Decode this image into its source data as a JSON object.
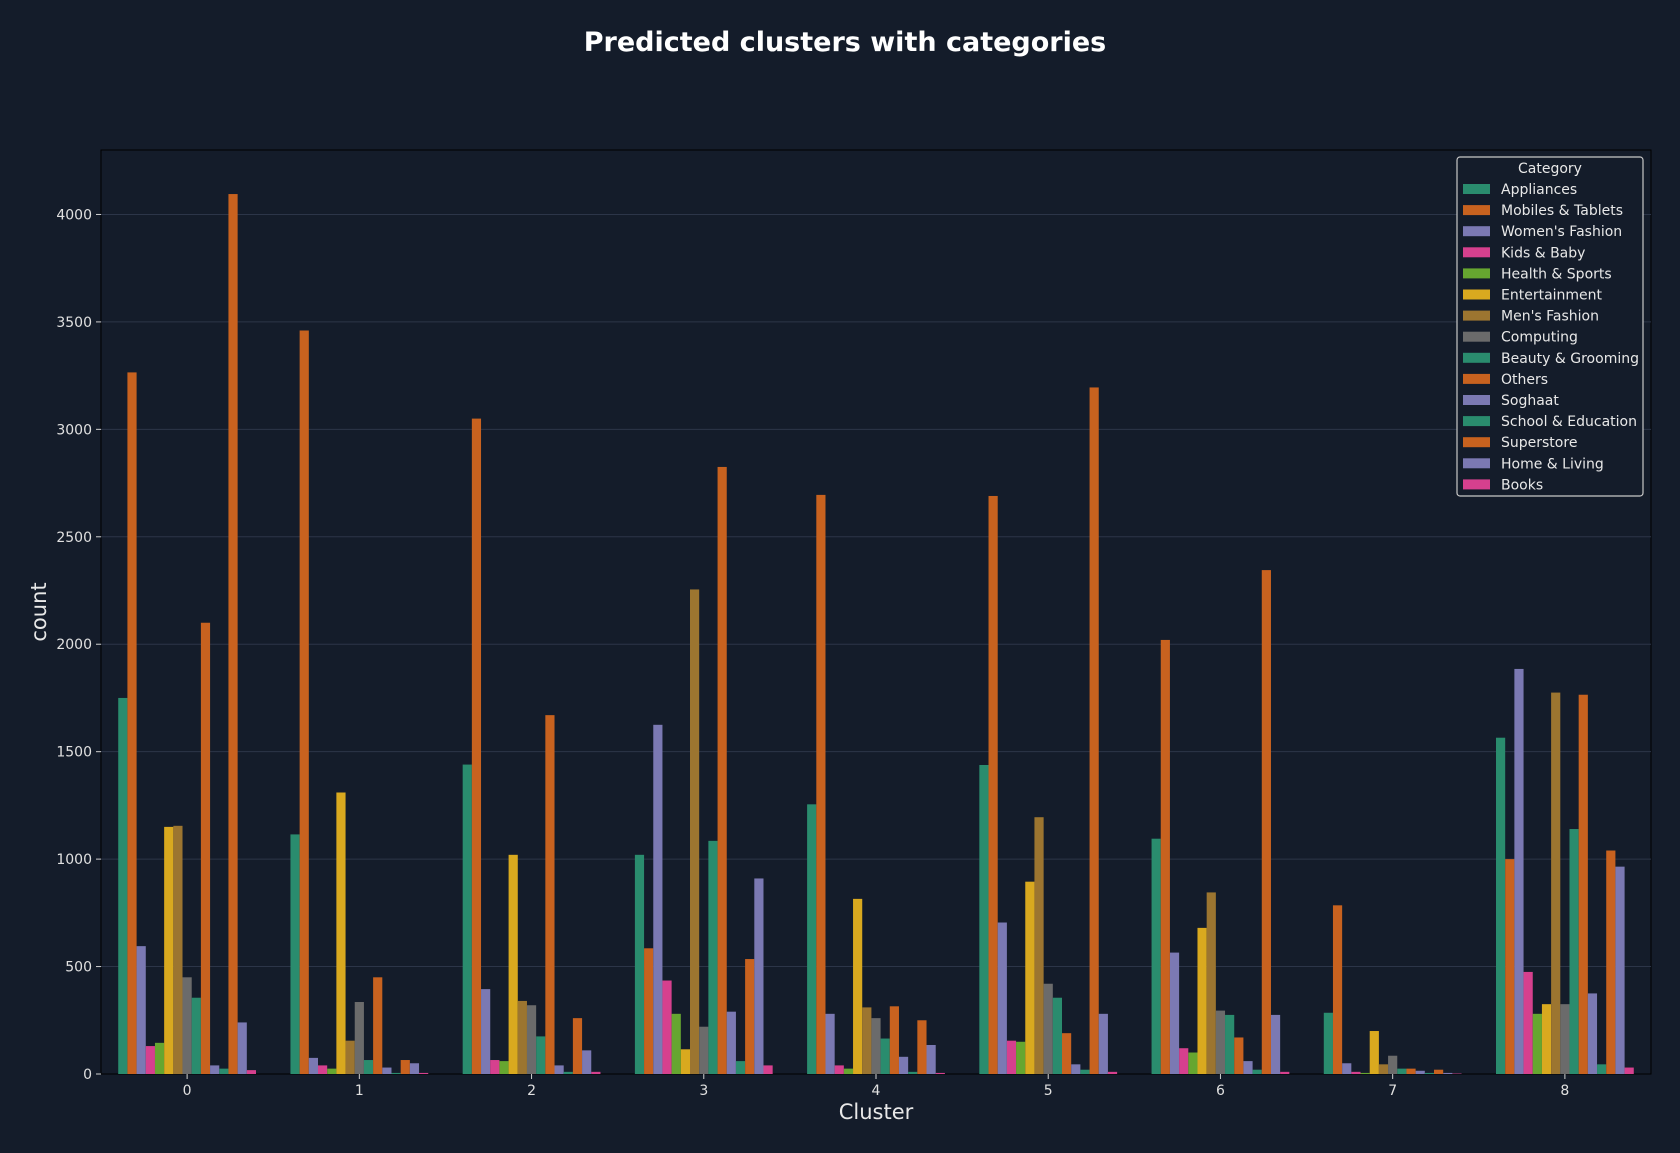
{
  "chart_data": {
    "type": "bar",
    "title": "Predicted clusters with categories",
    "xlabel": "Cluster",
    "ylabel": "count",
    "ylim": [
      0,
      4300
    ],
    "yticks": [
      0,
      500,
      1000,
      1500,
      2000,
      2500,
      3000,
      3500,
      4000
    ],
    "grid": true,
    "legend": {
      "title": "Category",
      "position": "top-right"
    },
    "categories": [
      "0",
      "1",
      "2",
      "3",
      "4",
      "5",
      "6",
      "7",
      "8"
    ],
    "series": [
      {
        "name": "Appliances",
        "color": "#2a8c6e",
        "values": [
          1750,
          1115,
          1440,
          1020,
          1255,
          1438,
          1095,
          285,
          1565
        ]
      },
      {
        "name": "Mobiles & Tablets",
        "color": "#c8621f",
        "values": [
          3265,
          3460,
          3050,
          585,
          2695,
          2690,
          2020,
          785,
          1000
        ]
      },
      {
        "name": "Women's Fashion",
        "color": "#7b79b3",
        "values": [
          595,
          75,
          395,
          1625,
          280,
          705,
          565,
          50,
          1885
        ]
      },
      {
        "name": "Kids & Baby",
        "color": "#d6408e",
        "values": [
          130,
          40,
          65,
          435,
          40,
          155,
          120,
          10,
          475
        ]
      },
      {
        "name": "Health & Sports",
        "color": "#66a630",
        "values": [
          145,
          25,
          60,
          280,
          25,
          150,
          100,
          5,
          280
        ]
      },
      {
        "name": "Entertainment",
        "color": "#d9a91f",
        "values": [
          1150,
          1310,
          1020,
          115,
          815,
          895,
          680,
          200,
          325
        ]
      },
      {
        "name": "Men's Fashion",
        "color": "#9c7530",
        "values": [
          1155,
          155,
          340,
          2255,
          310,
          1195,
          845,
          45,
          1775
        ]
      },
      {
        "name": "Computing",
        "color": "#6b6b6b",
        "values": [
          450,
          335,
          320,
          220,
          260,
          420,
          295,
          85,
          325
        ]
      },
      {
        "name": "Beauty & Grooming",
        "color": "#2a8c6e",
        "values": [
          355,
          65,
          175,
          1085,
          165,
          355,
          275,
          25,
          1140
        ]
      },
      {
        "name": "Others",
        "color": "#c8621f",
        "values": [
          2100,
          450,
          1670,
          2825,
          315,
          190,
          170,
          25,
          1765
        ]
      },
      {
        "name": "Soghaat",
        "color": "#7b79b3",
        "values": [
          40,
          30,
          40,
          290,
          80,
          45,
          60,
          15,
          375
        ]
      },
      {
        "name": "School & Education",
        "color": "#2a8c6e",
        "values": [
          25,
          5,
          10,
          60,
          10,
          20,
          20,
          5,
          45
        ]
      },
      {
        "name": "Superstore",
        "color": "#c8621f",
        "values": [
          4095,
          65,
          260,
          535,
          250,
          3195,
          2345,
          20,
          1040
        ]
      },
      {
        "name": "Home & Living",
        "color": "#7b79b3",
        "values": [
          240,
          50,
          110,
          910,
          135,
          280,
          275,
          5,
          965
        ]
      },
      {
        "name": "Books",
        "color": "#d6408e",
        "values": [
          18,
          5,
          10,
          40,
          5,
          10,
          10,
          2,
          30
        ]
      }
    ]
  }
}
